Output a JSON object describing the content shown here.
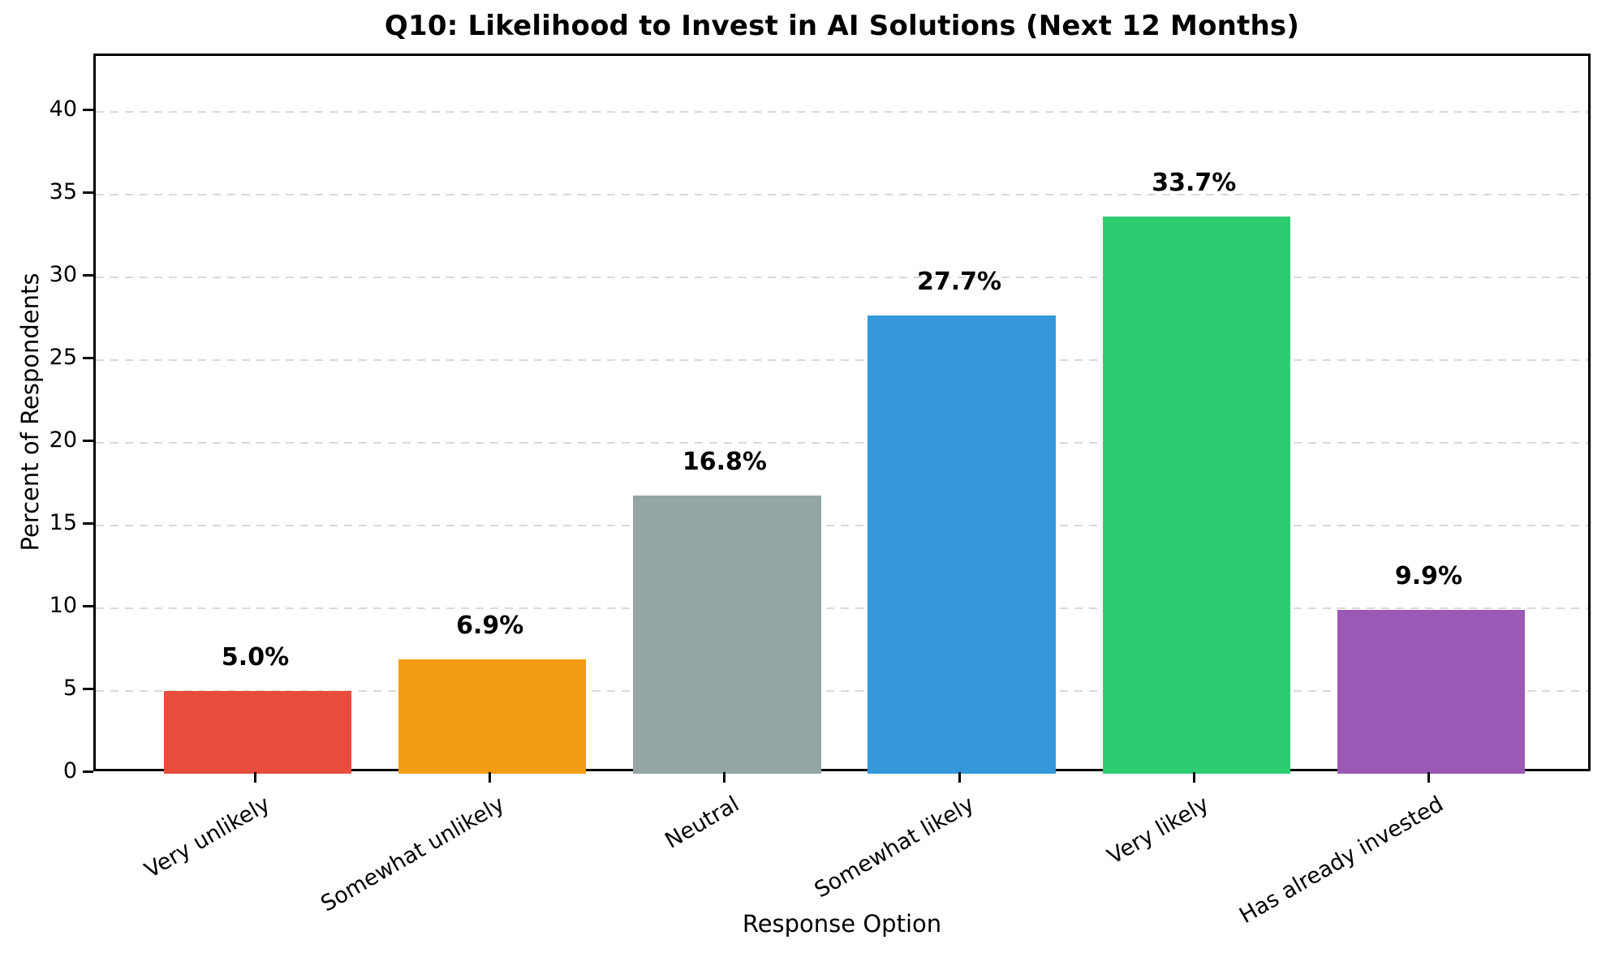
{
  "chart_data": {
    "type": "bar",
    "title": "Q10: Likelihood to Invest in AI Solutions (Next 12 Months)",
    "xlabel": "Response Option",
    "ylabel": "Percent of Respondents",
    "categories": [
      "Very unlikely",
      "Somewhat unlikely",
      "Neutral",
      "Somewhat likely",
      "Very likely",
      "Has already invested"
    ],
    "values": [
      5.0,
      6.9,
      16.8,
      27.7,
      33.7,
      9.9
    ],
    "value_labels": [
      "5.0%",
      "6.9%",
      "16.8%",
      "27.7%",
      "33.7%",
      "9.9%"
    ],
    "bar_colors": [
      "#e74c3c",
      "#f39c12",
      "#95a5a6",
      "#3498db",
      "#2ecc71",
      "#9b59b6"
    ],
    "yticks": [
      0,
      5,
      10,
      15,
      20,
      25,
      30,
      35,
      40
    ],
    "ylim": [
      0,
      43.4
    ],
    "grid": "horizontal-dashed",
    "legend": "none"
  },
  "style": {
    "background": "#ffffff",
    "axis_color": "#000000",
    "grid_color": "#d9d9d9",
    "text_color": "#000000"
  }
}
